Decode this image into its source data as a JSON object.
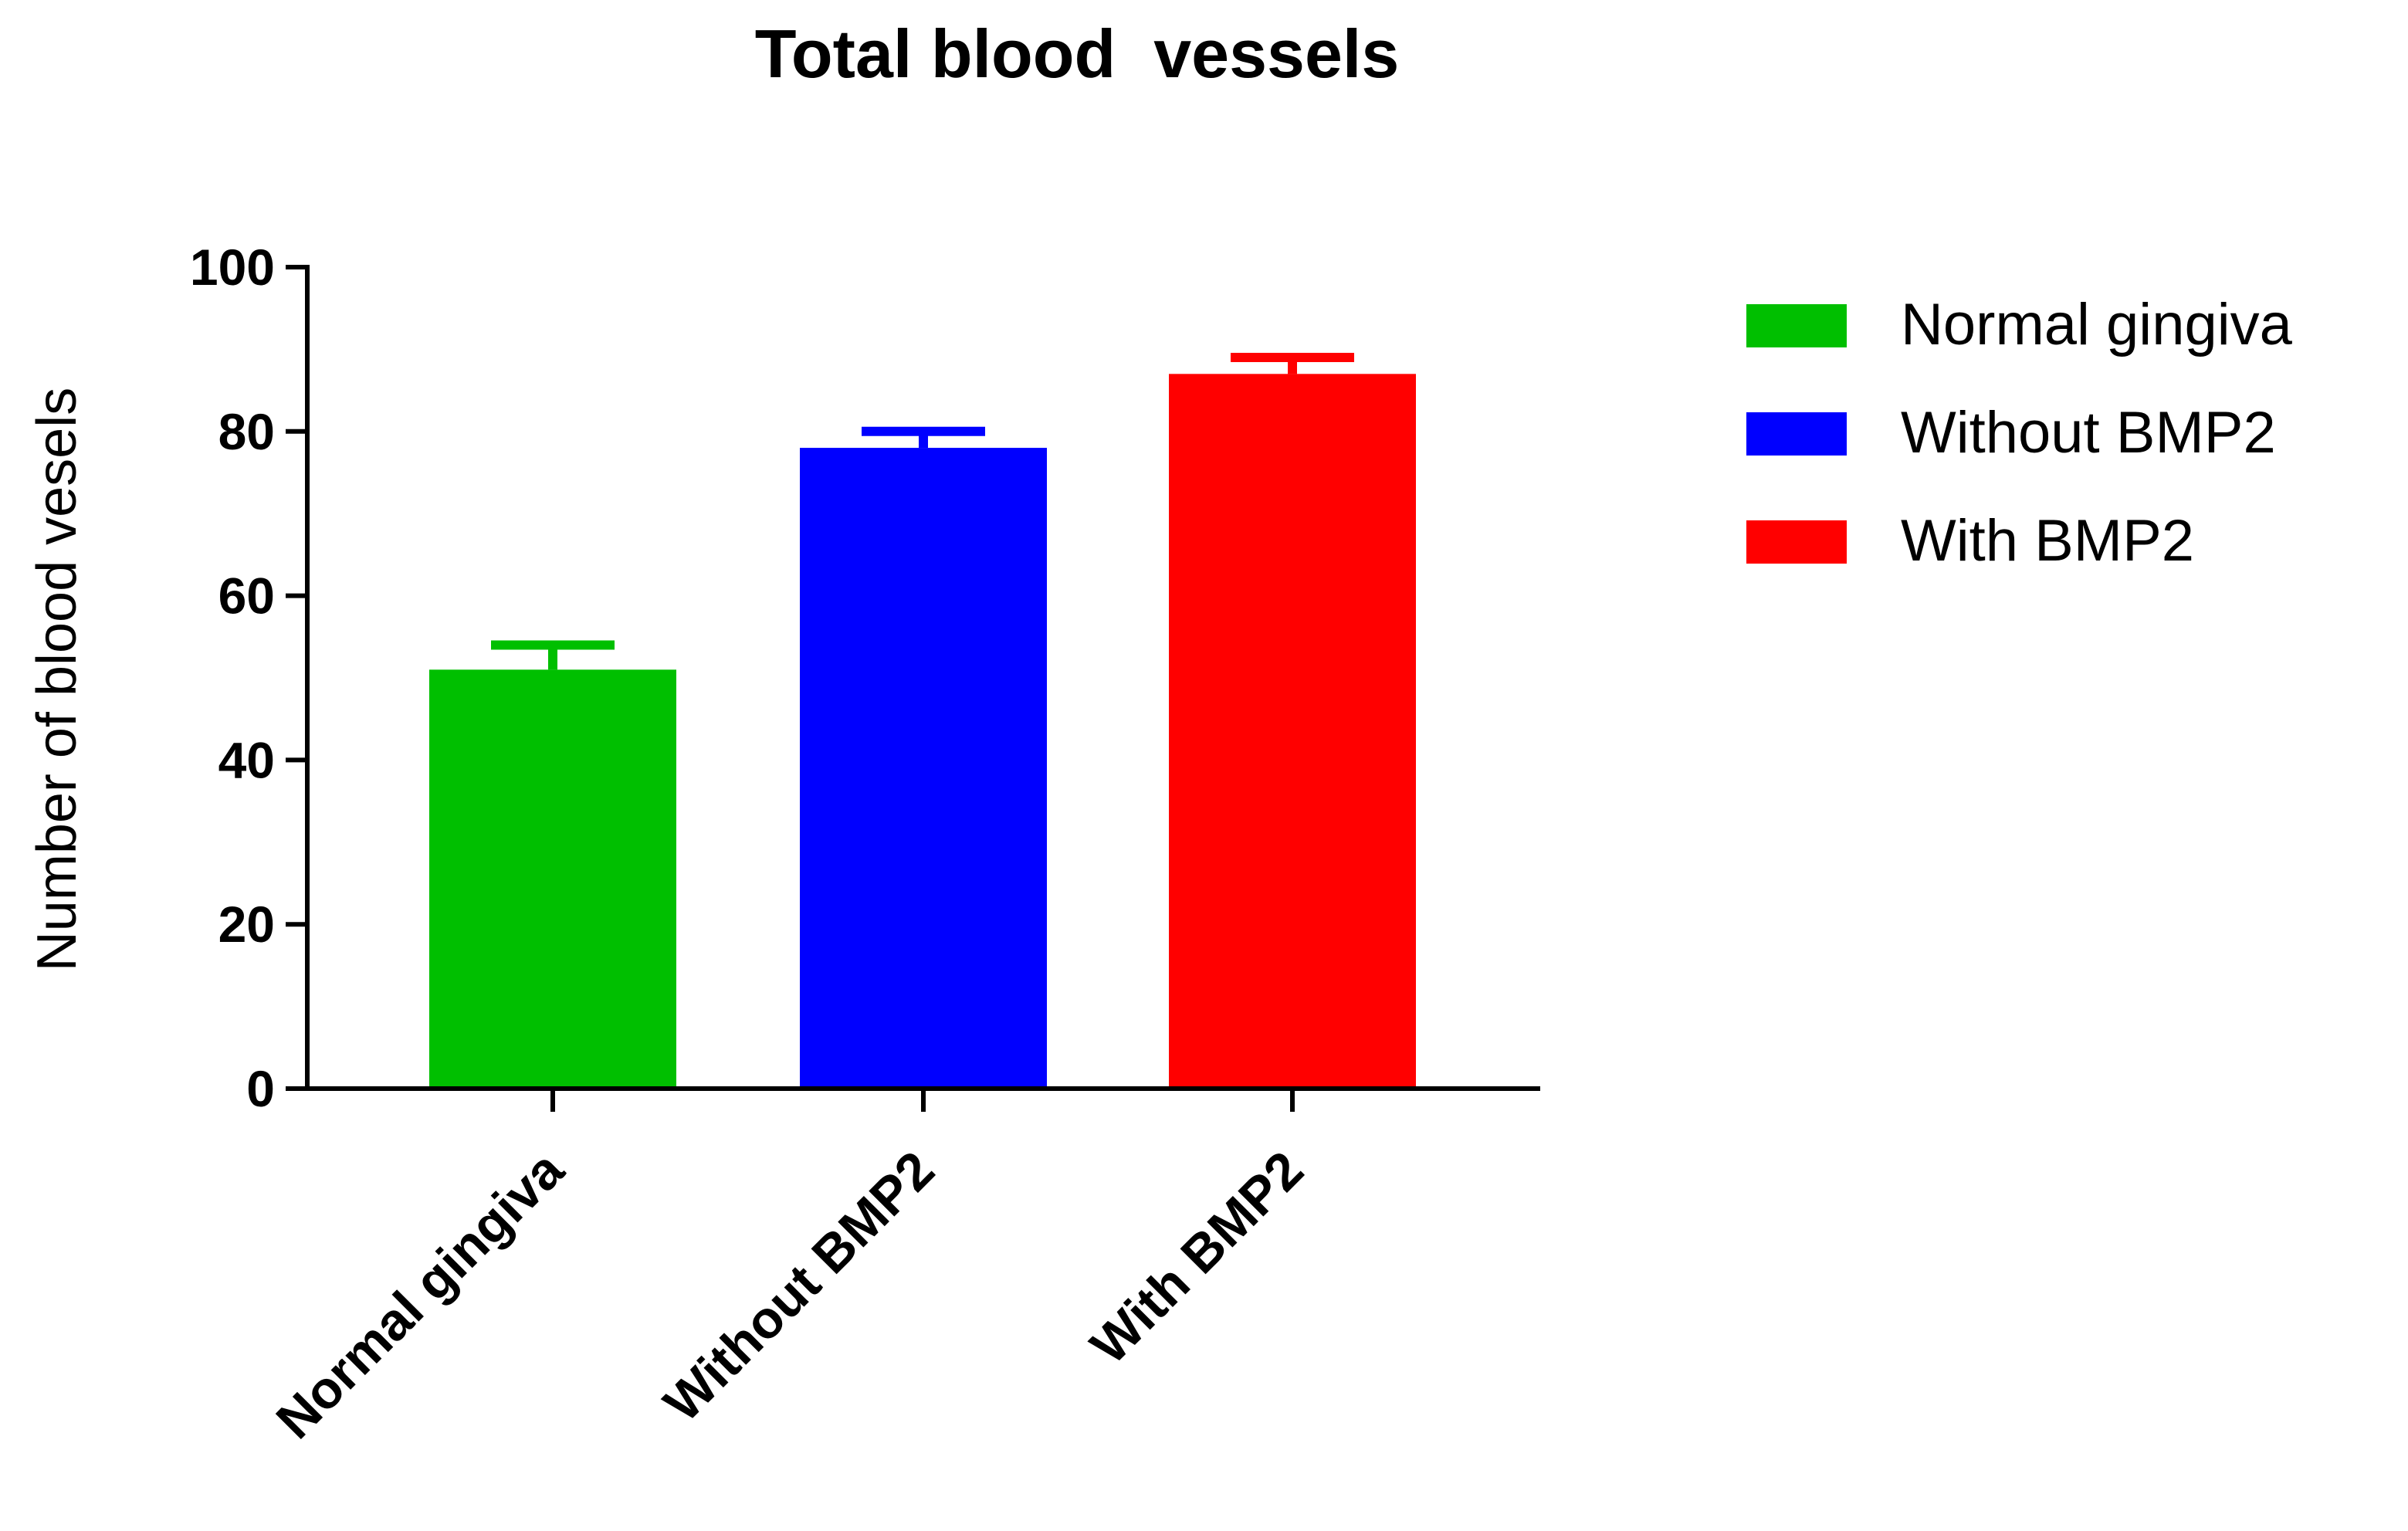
{
  "chart_data": {
    "type": "bar",
    "title": "Total blood  vessels",
    "xlabel": "",
    "ylabel": "Number of blood vesels",
    "ylim": [
      0,
      100
    ],
    "yticks": [
      0,
      20,
      40,
      60,
      80,
      100
    ],
    "yticks_labels": [
      "0",
      "20",
      "40",
      "60",
      "80",
      "100"
    ],
    "categories": [
      "Normal gingiva",
      "Without BMP2",
      "With BMP2"
    ],
    "values": [
      51,
      78,
      87
    ],
    "errors": [
      3,
      2,
      2
    ],
    "colors": [
      "#00bf00",
      "#0000ff",
      "#ff0000"
    ],
    "legend": {
      "position": "right",
      "entries": [
        "Normal gingiva",
        "Without BMP2",
        "With BMP2"
      ]
    },
    "grid": false
  }
}
